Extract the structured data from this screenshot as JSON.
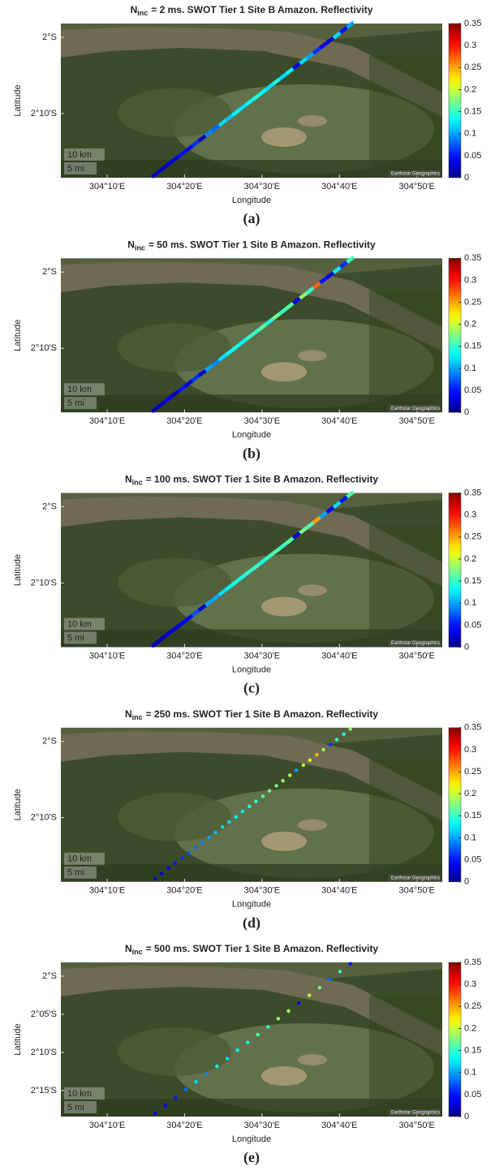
{
  "chart_data": [
    {
      "type": "scatter",
      "title_symbol": "N",
      "title_subscript": "inc",
      "title": "= 2 ms. SWOT Tier 1 Site B Amazon. Reflectivity",
      "caption": "(a)",
      "xlabel": "Longitude",
      "ylabel": "Latitude",
      "marker": "line",
      "colormap": "jet",
      "clim": [
        0,
        0.35
      ],
      "cticks": [
        0,
        0.05,
        0.1,
        0.15,
        0.2,
        0.25,
        0.3,
        0.35
      ],
      "xlim": [
        304.067,
        304.888
      ],
      "ylim": [
        -2.307,
        -1.97
      ],
      "xticks": [
        {
          "value": 304.1667,
          "label": "304°10'E"
        },
        {
          "value": 304.3333,
          "label": "304°20'E"
        },
        {
          "value": 304.5,
          "label": "304°30'E"
        },
        {
          "value": 304.6667,
          "label": "304°40'E"
        },
        {
          "value": 304.8333,
          "label": "304°50'E"
        }
      ],
      "yticks": [
        {
          "value": -2,
          "label": "2°S"
        },
        {
          "value": -2.1667,
          "label": "2°10'S"
        }
      ],
      "scale_km": "10 km",
      "scale_mi": "5 mi",
      "attribution": "Earthstar Geographics",
      "x": [
        304.27,
        304.284,
        304.299,
        304.313,
        304.328,
        304.342,
        304.357,
        304.371,
        304.386,
        304.4,
        304.415,
        304.429,
        304.444,
        304.458,
        304.473,
        304.487,
        304.502,
        304.516,
        304.531,
        304.545,
        304.56,
        304.574,
        304.589,
        304.603,
        304.618,
        304.632,
        304.647,
        304.661,
        304.676,
        304.69
      ],
      "y": [
        -2.3,
        -2.289,
        -2.277,
        -2.266,
        -2.255,
        -2.244,
        -2.232,
        -2.221,
        -2.21,
        -2.199,
        -2.187,
        -2.176,
        -2.165,
        -2.153,
        -2.142,
        -2.131,
        -2.12,
        -2.108,
        -2.097,
        -2.086,
        -2.074,
        -2.063,
        -2.052,
        -2.041,
        -2.029,
        -2.018,
        -2.007,
        -1.996,
        -1.984,
        -1.973
      ],
      "values": [
        0.02,
        0.02,
        0.03,
        0.03,
        0.05,
        0.04,
        0.06,
        0.02,
        0.09,
        0.08,
        0.12,
        0.11,
        0.13,
        0.12,
        0.13,
        0.14,
        0.13,
        0.12,
        0.14,
        0.12,
        0.13,
        0.04,
        0.12,
        0.1,
        0.06,
        0.04,
        0.03,
        0.12,
        0.05,
        0.1
      ]
    },
    {
      "type": "scatter",
      "title_symbol": "N",
      "title_subscript": "inc",
      "title": "= 50 ms. SWOT Tier 1 Site B Amazon. Reflectivity",
      "caption": "(b)",
      "xlabel": "Longitude",
      "ylabel": "Latitude",
      "marker": "line",
      "colormap": "jet",
      "clim": [
        0,
        0.35
      ],
      "cticks": [
        0,
        0.05,
        0.1,
        0.15,
        0.2,
        0.25,
        0.3,
        0.35
      ],
      "xlim": [
        304.067,
        304.888
      ],
      "ylim": [
        -2.307,
        -1.97
      ],
      "xticks": [
        {
          "value": 304.1667,
          "label": "304°10'E"
        },
        {
          "value": 304.3333,
          "label": "304°20'E"
        },
        {
          "value": 304.5,
          "label": "304°30'E"
        },
        {
          "value": 304.6667,
          "label": "304°40'E"
        },
        {
          "value": 304.8333,
          "label": "304°50'E"
        }
      ],
      "yticks": [
        {
          "value": -2,
          "label": "2°S"
        },
        {
          "value": -2.1667,
          "label": "2°10'S"
        }
      ],
      "scale_km": "10 km",
      "scale_mi": "5 mi",
      "attribution": "Earthstar Geographics",
      "x": [
        304.27,
        304.284,
        304.299,
        304.313,
        304.328,
        304.342,
        304.357,
        304.371,
        304.386,
        304.4,
        304.415,
        304.429,
        304.444,
        304.458,
        304.473,
        304.487,
        304.502,
        304.516,
        304.531,
        304.545,
        304.56,
        304.574,
        304.589,
        304.603,
        304.618,
        304.632,
        304.647,
        304.661,
        304.676,
        304.69
      ],
      "y": [
        -2.3,
        -2.289,
        -2.277,
        -2.266,
        -2.255,
        -2.244,
        -2.232,
        -2.221,
        -2.21,
        -2.199,
        -2.187,
        -2.176,
        -2.165,
        -2.153,
        -2.142,
        -2.131,
        -2.12,
        -2.108,
        -2.097,
        -2.086,
        -2.074,
        -2.063,
        -2.052,
        -2.041,
        -2.029,
        -2.018,
        -2.007,
        -1.996,
        -1.984,
        -1.973
      ],
      "values": [
        0.02,
        0.02,
        0.04,
        0.02,
        0.05,
        0.03,
        0.06,
        0.03,
        0.1,
        0.09,
        0.12,
        0.13,
        0.14,
        0.13,
        0.15,
        0.15,
        0.16,
        0.14,
        0.17,
        0.15,
        0.16,
        0.04,
        0.18,
        0.15,
        0.27,
        0.05,
        0.03,
        0.13,
        0.06,
        0.15
      ]
    },
    {
      "type": "scatter",
      "title_symbol": "N",
      "title_subscript": "inc",
      "title": "= 100 ms. SWOT Tier 1 Site B Amazon. Reflectivity",
      "caption": "(c)",
      "xlabel": "Longitude",
      "ylabel": "Latitude",
      "marker": "line",
      "colormap": "jet",
      "clim": [
        0,
        0.35
      ],
      "cticks": [
        0,
        0.05,
        0.1,
        0.15,
        0.2,
        0.25,
        0.3,
        0.35
      ],
      "xlim": [
        304.067,
        304.888
      ],
      "ylim": [
        -2.307,
        -1.97
      ],
      "xticks": [
        {
          "value": 304.1667,
          "label": "304°10'E"
        },
        {
          "value": 304.3333,
          "label": "304°20'E"
        },
        {
          "value": 304.5,
          "label": "304°30'E"
        },
        {
          "value": 304.6667,
          "label": "304°40'E"
        },
        {
          "value": 304.8333,
          "label": "304°50'E"
        }
      ],
      "yticks": [
        {
          "value": -2,
          "label": "2°S"
        },
        {
          "value": -2.1667,
          "label": "2°10'S"
        }
      ],
      "scale_km": "10 km",
      "scale_mi": "5 mi",
      "attribution": "Earthstar Geographics",
      "x": [
        304.27,
        304.284,
        304.299,
        304.313,
        304.328,
        304.342,
        304.357,
        304.371,
        304.386,
        304.4,
        304.415,
        304.429,
        304.444,
        304.458,
        304.473,
        304.487,
        304.502,
        304.516,
        304.531,
        304.545,
        304.56,
        304.574,
        304.589,
        304.603,
        304.618,
        304.632,
        304.647,
        304.661,
        304.676,
        304.69
      ],
      "y": [
        -2.3,
        -2.289,
        -2.277,
        -2.266,
        -2.255,
        -2.244,
        -2.232,
        -2.221,
        -2.21,
        -2.199,
        -2.187,
        -2.176,
        -2.165,
        -2.153,
        -2.142,
        -2.131,
        -2.12,
        -2.108,
        -2.097,
        -2.086,
        -2.074,
        -2.063,
        -2.052,
        -2.041,
        -2.029,
        -2.018,
        -2.007,
        -1.996,
        -1.984,
        -1.973
      ],
      "values": [
        0.02,
        0.02,
        0.03,
        0.03,
        0.04,
        0.04,
        0.07,
        0.03,
        0.1,
        0.1,
        0.12,
        0.13,
        0.14,
        0.14,
        0.15,
        0.15,
        0.14,
        0.15,
        0.16,
        0.15,
        0.16,
        0.03,
        0.17,
        0.16,
        0.25,
        0.1,
        0.04,
        0.12,
        0.05,
        0.16
      ]
    },
    {
      "type": "scatter",
      "title_symbol": "N",
      "title_subscript": "inc",
      "title": "= 250 ms. SWOT Tier 1 Site B Amazon. Reflectivity",
      "caption": "(d)",
      "xlabel": "Longitude",
      "ylabel": "Latitude",
      "marker": "dot",
      "colormap": "jet",
      "clim": [
        0,
        0.35
      ],
      "cticks": [
        0,
        0.05,
        0.1,
        0.15,
        0.2,
        0.25,
        0.3,
        0.35
      ],
      "xlim": [
        304.067,
        304.888
      ],
      "ylim": [
        -2.307,
        -1.97
      ],
      "xticks": [
        {
          "value": 304.1667,
          "label": "304°10'E"
        },
        {
          "value": 304.3333,
          "label": "304°20'E"
        },
        {
          "value": 304.5,
          "label": "304°30'E"
        },
        {
          "value": 304.6667,
          "label": "304°40'E"
        },
        {
          "value": 304.8333,
          "label": "304°50'E"
        }
      ],
      "yticks": [
        {
          "value": -2,
          "label": "2°S"
        },
        {
          "value": -2.1667,
          "label": "2°10'S"
        }
      ],
      "scale_km": "10 km",
      "scale_mi": "5 mi",
      "attribution": "Earthstar Geographics",
      "x": [
        304.27,
        304.284,
        304.299,
        304.313,
        304.328,
        304.342,
        304.357,
        304.371,
        304.386,
        304.4,
        304.415,
        304.429,
        304.444,
        304.458,
        304.473,
        304.487,
        304.502,
        304.516,
        304.531,
        304.545,
        304.56,
        304.574,
        304.589,
        304.603,
        304.618,
        304.632,
        304.647,
        304.661,
        304.676,
        304.69
      ],
      "y": [
        -2.3,
        -2.289,
        -2.277,
        -2.266,
        -2.255,
        -2.244,
        -2.232,
        -2.221,
        -2.21,
        -2.199,
        -2.187,
        -2.176,
        -2.165,
        -2.153,
        -2.142,
        -2.131,
        -2.12,
        -2.108,
        -2.097,
        -2.086,
        -2.074,
        -2.063,
        -2.052,
        -2.041,
        -2.029,
        -2.018,
        -2.007,
        -1.996,
        -1.984,
        -1.973
      ],
      "values": [
        0.03,
        0.03,
        0.04,
        0.05,
        0.06,
        0.07,
        0.08,
        0.09,
        0.1,
        0.11,
        0.12,
        0.12,
        0.13,
        0.13,
        0.14,
        0.15,
        0.16,
        0.17,
        0.17,
        0.18,
        0.19,
        0.1,
        0.2,
        0.21,
        0.24,
        0.18,
        0.06,
        0.15,
        0.14,
        0.18
      ]
    },
    {
      "type": "scatter",
      "title_symbol": "N",
      "title_subscript": "inc",
      "title": "= 500 ms. SWOT Tier 1 Site B Amazon. Reflectivity",
      "caption": "(e)",
      "xlabel": "Longitude",
      "ylabel": "Latitude",
      "marker": "dot",
      "colormap": "jet",
      "clim": [
        0,
        0.35
      ],
      "cticks": [
        0,
        0.05,
        0.1,
        0.15,
        0.2,
        0.25,
        0.3,
        0.35
      ],
      "xlim": [
        304.067,
        304.888
      ],
      "ylim": [
        -2.307,
        -1.97
      ],
      "xticks": [
        {
          "value": 304.1667,
          "label": "304°10'E"
        },
        {
          "value": 304.3333,
          "label": "304°20'E"
        },
        {
          "value": 304.5,
          "label": "304°30'E"
        },
        {
          "value": 304.6667,
          "label": "304°40'E"
        },
        {
          "value": 304.8333,
          "label": "304°50'E"
        }
      ],
      "yticks": [
        {
          "value": -2,
          "label": "2°S"
        },
        {
          "value": -2.0833,
          "label": "2°05'S"
        },
        {
          "value": -2.1667,
          "label": "2°10'S"
        },
        {
          "value": -2.25,
          "label": "2°15'S"
        }
      ],
      "scale_km": "10 km",
      "scale_mi": "5 mi",
      "attribution": "Earthstar Geographics",
      "x": [
        304.27,
        304.292,
        304.314,
        304.336,
        304.358,
        304.381,
        304.403,
        304.425,
        304.447,
        304.469,
        304.491,
        304.513,
        304.535,
        304.557,
        304.579,
        304.602,
        304.624,
        304.646,
        304.668,
        304.69
      ],
      "y": [
        -2.3,
        -2.283,
        -2.266,
        -2.248,
        -2.231,
        -2.214,
        -2.197,
        -2.18,
        -2.162,
        -2.145,
        -2.128,
        -2.111,
        -2.093,
        -2.076,
        -2.059,
        -2.042,
        -2.025,
        -2.007,
        -1.99,
        -1.973
      ],
      "values": [
        0.03,
        0.04,
        0.05,
        0.08,
        0.12,
        0.09,
        0.14,
        0.12,
        0.13,
        0.14,
        0.16,
        0.15,
        0.18,
        0.19,
        0.04,
        0.2,
        0.17,
        0.08,
        0.15,
        0.05
      ]
    }
  ]
}
